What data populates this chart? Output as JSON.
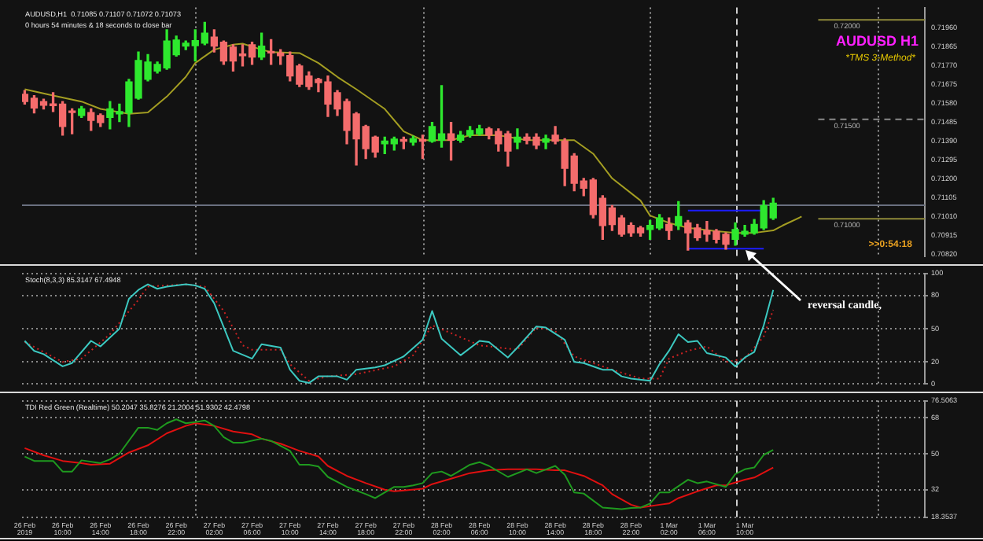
{
  "chart_data": [
    {
      "type": "candlestick",
      "title": "AUDUSD H1",
      "subtitle": "*TMS 3-Method*",
      "annotations": [
        "AUDUSD,H1  0.71085 0.71107 0.71072 0.71073",
        "0 hours 54 minutes & 18 seconds to close bar",
        {
          "text": "reversal candle,",
          "x": "2019-03-01T10:00",
          "y": 0.70867
        },
        ">>0:54:18"
      ],
      "x": [
        "2019-02-26T06:00",
        "2019-02-26T07:00",
        "2019-02-26T08:00",
        "2019-02-26T09:00",
        "2019-02-26T10:00",
        "2019-02-26T11:00",
        "2019-02-26T12:00",
        "2019-02-26T13:00",
        "2019-02-26T14:00",
        "2019-02-26T15:00",
        "2019-02-26T16:00",
        "2019-02-26T17:00",
        "2019-02-26T18:00",
        "2019-02-26T19:00",
        "2019-02-26T20:00",
        "2019-02-26T21:00",
        "2019-02-26T22:00",
        "2019-02-26T23:00",
        "2019-02-27T00:00",
        "2019-02-27T01:00",
        "2019-02-27T02:00",
        "2019-02-27T03:00",
        "2019-02-27T04:00",
        "2019-02-27T05:00",
        "2019-02-27T06:00",
        "2019-02-27T07:00",
        "2019-02-27T08:00",
        "2019-02-27T09:00",
        "2019-02-27T10:00",
        "2019-02-27T11:00",
        "2019-02-27T12:00",
        "2019-02-27T13:00",
        "2019-02-27T14:00",
        "2019-02-27T15:00",
        "2019-02-27T16:00",
        "2019-02-27T17:00",
        "2019-02-27T18:00",
        "2019-02-27T19:00",
        "2019-02-27T20:00",
        "2019-02-27T21:00",
        "2019-02-27T22:00",
        "2019-02-27T23:00",
        "2019-02-28T00:00",
        "2019-02-28T01:00",
        "2019-02-28T02:00",
        "2019-02-28T03:00",
        "2019-02-28T04:00",
        "2019-02-28T05:00",
        "2019-02-28T06:00",
        "2019-02-28T07:00",
        "2019-02-28T08:00",
        "2019-02-28T09:00",
        "2019-02-28T10:00",
        "2019-02-28T11:00",
        "2019-02-28T12:00",
        "2019-02-28T13:00",
        "2019-02-28T14:00",
        "2019-02-28T15:00",
        "2019-02-28T16:00",
        "2019-02-28T17:00",
        "2019-02-28T18:00",
        "2019-02-28T19:00",
        "2019-02-28T20:00",
        "2019-02-28T21:00",
        "2019-02-28T22:00",
        "2019-02-28T23:00",
        "2019-03-01T00:00",
        "2019-03-01T01:00",
        "2019-03-01T02:00",
        "2019-03-01T03:00",
        "2019-03-01T04:00",
        "2019-03-01T05:00",
        "2019-03-01T06:00",
        "2019-03-01T07:00",
        "2019-03-01T08:00",
        "2019-03-01T09:00",
        "2019-03-01T10:00",
        "2019-03-01T11:00",
        "2019-03-01T12:00",
        "2019-03-01T13:00"
      ],
      "ohlc": [
        [
          0.71626,
          0.71644,
          0.71576,
          0.71589
        ],
        [
          0.71606,
          0.71619,
          0.71532,
          0.71557
        ],
        [
          0.71589,
          0.71601,
          0.71552,
          0.71571
        ],
        [
          0.71576,
          0.71634,
          0.71539,
          0.71569
        ],
        [
          0.71576,
          0.71589,
          0.7142,
          0.71464
        ],
        [
          0.71539,
          0.71552,
          0.71427,
          0.71534
        ],
        [
          0.71519,
          0.71564,
          0.71509,
          0.71552
        ],
        [
          0.71534,
          0.71552,
          0.71444,
          0.71494
        ],
        [
          0.71519,
          0.71527,
          0.71464,
          0.71484
        ],
        [
          0.71509,
          0.71589,
          0.71452,
          0.71552
        ],
        [
          0.71527,
          0.71576,
          0.71489,
          0.71539
        ],
        [
          0.71532,
          0.71701,
          0.71464,
          0.71688
        ],
        [
          0.71606,
          0.71838,
          0.71601,
          0.71796
        ],
        [
          0.71701,
          0.71825,
          0.71693,
          0.71788
        ],
        [
          0.71743,
          0.71788,
          0.71733,
          0.71776
        ],
        [
          0.71758,
          0.7195,
          0.71751,
          0.71893
        ],
        [
          0.71825,
          0.71918,
          0.71818,
          0.71898
        ],
        [
          0.71868,
          0.71893,
          0.7185,
          0.71883
        ],
        [
          0.7187,
          0.7195,
          0.71793,
          0.71895
        ],
        [
          0.71883,
          0.71987,
          0.71875,
          0.71933
        ],
        [
          0.71913,
          0.7195,
          0.71838,
          0.71868
        ],
        [
          0.71888,
          0.71893,
          0.71776,
          0.71793
        ],
        [
          0.71863,
          0.71875,
          0.71743,
          0.71793
        ],
        [
          0.71825,
          0.71875,
          0.71768,
          0.7182
        ],
        [
          0.71875,
          0.71888,
          0.71776,
          0.71813
        ],
        [
          0.71813,
          0.71933,
          0.71801,
          0.71868
        ],
        [
          0.71838,
          0.719,
          0.71776,
          0.71833
        ],
        [
          0.71833,
          0.7185,
          0.71776,
          0.7182
        ],
        [
          0.7182,
          0.71838,
          0.71693,
          0.71718
        ],
        [
          0.71768,
          0.71776,
          0.71664,
          0.71676
        ],
        [
          0.71718,
          0.71738,
          0.71651,
          0.71664
        ],
        [
          0.71701,
          0.71706,
          0.71639,
          0.71684
        ],
        [
          0.71688,
          0.71718,
          0.71514,
          0.71576
        ],
        [
          0.71634,
          0.71644,
          0.71519,
          0.71552
        ],
        [
          0.71589,
          0.71601,
          0.71377,
          0.71444
        ],
        [
          0.71527,
          0.71534,
          0.7127,
          0.71402
        ],
        [
          0.71464,
          0.71469,
          0.71303,
          0.71352
        ],
        [
          0.7141,
          0.71415,
          0.7131,
          0.71335
        ],
        [
          0.71377,
          0.7141,
          0.71327,
          0.7139
        ],
        [
          0.71377,
          0.7141,
          0.71345,
          0.714
        ],
        [
          0.71395,
          0.7141,
          0.71352,
          0.7139
        ],
        [
          0.71385,
          0.71415,
          0.7137,
          0.71402
        ],
        [
          0.71395,
          0.7142,
          0.71303,
          0.7139
        ],
        [
          0.7139,
          0.71484,
          0.71385,
          0.71464
        ],
        [
          0.71395,
          0.71669,
          0.7136,
          0.71427
        ],
        [
          0.71427,
          0.71484,
          0.71295,
          0.71395
        ],
        [
          0.71395,
          0.71439,
          0.71385,
          0.7142
        ],
        [
          0.7142,
          0.71464,
          0.7141,
          0.71444
        ],
        [
          0.71427,
          0.71469,
          0.7142,
          0.71452
        ],
        [
          0.71452,
          0.71459,
          0.71402,
          0.7142
        ],
        [
          0.71439,
          0.71452,
          0.7134,
          0.71377
        ],
        [
          0.71427,
          0.71439,
          0.71265,
          0.7134
        ],
        [
          0.71385,
          0.71452,
          0.71352,
          0.7141
        ],
        [
          0.7141,
          0.71427,
          0.71377,
          0.71395
        ],
        [
          0.7141,
          0.71427,
          0.71352,
          0.7137
        ],
        [
          0.71385,
          0.7142,
          0.71352,
          0.71402
        ],
        [
          0.7142,
          0.71464,
          0.71377,
          0.7139
        ],
        [
          0.7139,
          0.71402,
          0.71166,
          0.71253
        ],
        [
          0.71315,
          0.71327,
          0.71141,
          0.71178
        ],
        [
          0.7119,
          0.71203,
          0.71116,
          0.71153
        ],
        [
          0.71195,
          0.71203,
          0.71004,
          0.71021
        ],
        [
          0.71103,
          0.71116,
          0.70897,
          0.70966
        ],
        [
          0.71054,
          0.71066,
          0.70941,
          0.70971
        ],
        [
          0.71004,
          0.71016,
          0.70912,
          0.70922
        ],
        [
          0.70966,
          0.70979,
          0.70912,
          0.70929
        ],
        [
          0.70954,
          0.70961,
          0.70912,
          0.70929
        ],
        [
          0.70946,
          0.70991,
          0.70897,
          0.70966
        ],
        [
          0.70954,
          0.71021,
          0.70946,
          0.71004
        ],
        [
          0.70971,
          0.71004,
          0.70897,
          0.70941
        ],
        [
          0.70966,
          0.71086,
          0.70946,
          0.71011
        ],
        [
          0.70979,
          0.70991,
          0.70842,
          0.70929
        ],
        [
          0.70954,
          0.70971,
          0.70892,
          0.70904
        ],
        [
          0.70941,
          0.70986,
          0.70887,
          0.70922
        ],
        [
          0.70937,
          0.70946,
          0.70879,
          0.70897
        ],
        [
          0.70922,
          0.70929,
          0.70847,
          0.70872
        ],
        [
          0.70897,
          0.70979,
          0.70867,
          0.70946
        ],
        [
          0.70922,
          0.70966,
          0.70912,
          0.70937
        ],
        [
          0.70929,
          0.70996,
          0.70922,
          0.70971
        ],
        [
          0.70954,
          0.71091,
          0.70946,
          0.71066
        ],
        [
          0.71004,
          0.71103,
          0.70996,
          0.71078
        ]
      ],
      "colors": [
        "#f46c6c",
        "#f46c6c",
        "#f46c6c",
        "#f46c6c",
        "#f46c6c",
        "#f46c6c",
        "#2ee82e",
        "#f46c6c",
        "#f46c6c",
        "#2ee82e",
        "#2ee82e",
        "#2ee82e",
        "#2ee82e",
        "#2ee82e",
        "#2ee82e",
        "#2ee82e",
        "#2ee82e",
        "#2ee82e",
        "#2ee82e",
        "#2ee82e",
        "#f46c6c",
        "#f46c6c",
        "#f46c6c",
        "#f46c6c",
        "#f46c6c",
        "#2ee82e",
        "#f46c6c",
        "#f46c6c",
        "#f46c6c",
        "#f46c6c",
        "#f46c6c",
        "#f46c6c",
        "#f46c6c",
        "#f46c6c",
        "#f46c6c",
        "#f46c6c",
        "#f46c6c",
        "#f46c6c",
        "#2ee82e",
        "#2ee82e",
        "#f46c6c",
        "#2ee82e",
        "#f46c6c",
        "#2ee82e",
        "#2ee82e",
        "#f46c6c",
        "#2ee82e",
        "#2ee82e",
        "#2ee82e",
        "#f46c6c",
        "#f46c6c",
        "#f46c6c",
        "#2ee82e",
        "#f46c6c",
        "#f46c6c",
        "#2ee82e",
        "#f46c6c",
        "#f46c6c",
        "#f46c6c",
        "#f46c6c",
        "#f46c6c",
        "#f46c6c",
        "#f46c6c",
        "#f46c6c",
        "#f46c6c",
        "#f46c6c",
        "#2ee82e",
        "#2ee82e",
        "#f46c6c",
        "#2ee82e",
        "#f46c6c",
        "#f46c6c",
        "#f46c6c",
        "#f46c6c",
        "#f46c6c",
        "#2ee82e",
        "#2ee82e",
        "#2ee82e",
        "#2ee82e",
        "#2ee82e"
      ],
      "series": [
        {
          "type": "line",
          "color": "#a39d22",
          "x": [
            "2019-02-26T06:00",
            "2019-02-26T09:00",
            "2019-02-26T12:00",
            "2019-02-26T14:00",
            "2019-02-26T17:00",
            "2019-02-26T19:00",
            "2019-02-26T21:00",
            "2019-02-26T23:00",
            "2019-02-27T00:00",
            "2019-02-27T02:00",
            "2019-02-27T04:00",
            "2019-02-27T05:00",
            "2019-02-27T07:00",
            "2019-02-27T08:00",
            "2019-02-27T11:00",
            "2019-02-27T13:00",
            "2019-02-27T15:00",
            "2019-02-27T17:00",
            "2019-02-27T20:00",
            "2019-02-27T22:00",
            "2019-02-28T00:00",
            "2019-02-28T03:00",
            "2019-02-28T05:00",
            "2019-02-28T08:00",
            "2019-02-28T11:00",
            "2019-02-28T16:00",
            "2019-02-28T18:00",
            "2019-02-28T20:00",
            "2019-02-28T23:00",
            "2019-03-01T00:00",
            "2019-03-01T02:00",
            "2019-03-01T04:00",
            "2019-03-01T07:00",
            "2019-03-01T09:00",
            "2019-03-01T11:00",
            "2019-03-01T13:00",
            "2019-03-01T14:00",
            "2019-03-01T16:00"
          ],
          "values": [
            0.71651,
            0.71619,
            0.71589,
            0.71552,
            0.71527,
            0.71534,
            0.71614,
            0.71713,
            0.71783,
            0.7185,
            0.71875,
            0.7188,
            0.7185,
            0.71838,
            0.71833,
            0.71783,
            0.71713,
            0.71651,
            0.71552,
            0.71439,
            0.71395,
            0.71395,
            0.7142,
            0.7142,
            0.71395,
            0.71395,
            0.71327,
            0.71203,
            0.71091,
            0.71016,
            0.70979,
            0.70954,
            0.70937,
            0.70929,
            0.70929,
            0.70941,
            0.70966,
            0.71011
          ]
        },
        {
          "type": "line",
          "color": "#1c1cff",
          "x": [
            "2019-03-01T04:00",
            "2019-03-01T12:00"
          ],
          "values": [
            0.71041,
            0.71041
          ]
        },
        {
          "type": "line",
          "color": "#1c1cff",
          "x": [
            "2019-03-01T04:00",
            "2019-03-01T12:00"
          ],
          "values": [
            0.70849,
            0.70849
          ]
        },
        {
          "type": "line",
          "name": "0.72000",
          "color": "#8f8a3a",
          "x": [
            "2019-03-01T17:45",
            "2019-03-02T05:00"
          ],
          "values": [
            0.72,
            0.72
          ]
        },
        {
          "type": "line",
          "name": "0.71500",
          "color": "#8a8a8a",
          "line_style": "dashed",
          "x": [
            "2019-03-01T17:45",
            "2019-03-02T05:00"
          ],
          "values": [
            0.715,
            0.715
          ]
        },
        {
          "type": "line",
          "name": "0.71000",
          "color": "#8f8a3a",
          "x": [
            "2019-03-01T17:45",
            "2019-03-02T05:00"
          ],
          "values": [
            0.71,
            0.71
          ]
        }
      ],
      "xlim": [
        "2019-02-26T05:43",
        "2019-03-02T05:00"
      ],
      "ylim": [
        0.70809,
        0.72062
      ],
      "yticks": [
        {
          "value": 0.7082,
          "label": "0.70820"
        },
        0.70915,
        {
          "value": 0.7101,
          "label": "0.71010"
        },
        0.71105,
        {
          "value": 0.712,
          "label": "0.71200"
        },
        0.71295,
        {
          "value": 0.7139,
          "label": "0.71390"
        },
        0.71485,
        {
          "value": 0.7158,
          "label": "0.71580"
        },
        0.71675,
        {
          "value": 0.7177,
          "label": "0.71770"
        },
        0.71865,
        {
          "value": 0.7196,
          "label": "0.71960"
        }
      ],
      "ref_lines": [
        {
          "axis": "x",
          "value": "2019-02-27T00:00",
          "color": "#9a9a9a",
          "line_style": "dotted"
        },
        {
          "axis": "x",
          "value": "2019-02-28T00:00",
          "color": "#9a9a9a",
          "line_style": "dotted"
        },
        {
          "axis": "x",
          "value": "2019-03-01T00:00",
          "color": "#9a9a9a",
          "line_style": "dotted"
        },
        {
          "axis": "x",
          "value": "2019-03-02T00:00",
          "color": "#9a9a9a",
          "line_style": "dotted"
        },
        {
          "axis": "x",
          "value": "2019-03-01T09:00",
          "color": "#d0d0d0",
          "line_style": "dashed"
        },
        {
          "axis": "y",
          "value": 0.71074,
          "color": "#6a7080",
          "line_style": "solid"
        }
      ],
      "tick_labels": "y",
      "grid": false,
      "marker": "none",
      "legend": false
    },
    {
      "type": "line",
      "title": "Stoch(8,3,3) 85.3147 67.4948",
      "series": [
        {
          "color": "#3cc8c0",
          "x": [
            "2019-02-26T06:00",
            "2019-02-26T07:00",
            "2019-02-26T08:00",
            "2019-02-26T10:00",
            "2019-02-26T11:00",
            "2019-02-26T13:00",
            "2019-02-26T14:00",
            "2019-02-26T16:00",
            "2019-02-26T17:00",
            "2019-02-26T18:00",
            "2019-02-26T19:00",
            "2019-02-26T20:00",
            "2019-02-26T21:00",
            "2019-02-26T23:00",
            "2019-02-27T00:00",
            "2019-02-27T01:00",
            "2019-02-27T02:00",
            "2019-02-27T04:00",
            "2019-02-27T06:00",
            "2019-02-27T07:00",
            "2019-02-27T09:00",
            "2019-02-27T10:00",
            "2019-02-27T11:00",
            "2019-02-27T12:00",
            "2019-02-27T13:00",
            "2019-02-27T15:00",
            "2019-02-27T16:00",
            "2019-02-27T17:00",
            "2019-02-27T19:00",
            "2019-02-27T20:00",
            "2019-02-27T22:00",
            "2019-02-28T00:00",
            "2019-02-28T01:00",
            "2019-02-28T02:00",
            "2019-02-28T04:00",
            "2019-02-28T06:00",
            "2019-02-28T07:00",
            "2019-02-28T09:00",
            "2019-02-28T10:00",
            "2019-02-28T12:00",
            "2019-02-28T13:00",
            "2019-02-28T15:00",
            "2019-02-28T16:00",
            "2019-02-28T17:00",
            "2019-02-28T19:00",
            "2019-02-28T20:00",
            "2019-02-28T21:00",
            "2019-02-28T22:00",
            "2019-03-01T00:00",
            "2019-03-01T01:00",
            "2019-03-01T02:00",
            "2019-03-01T03:00",
            "2019-03-01T04:00",
            "2019-03-01T05:00",
            "2019-03-01T06:00",
            "2019-03-01T08:00",
            "2019-03-01T09:00",
            "2019-03-01T10:00",
            "2019-03-01T11:00",
            "2019-03-01T12:00",
            "2019-03-01T13:00"
          ],
          "values": [
            39,
            30,
            27,
            16,
            19,
            39,
            34,
            50,
            77,
            85,
            90,
            86,
            88,
            90,
            89,
            86,
            73,
            30,
            23,
            36,
            33,
            13,
            3,
            1,
            7,
            7,
            4,
            13,
            15,
            17,
            25,
            40,
            66,
            41,
            26,
            39,
            38,
            24,
            33,
            52,
            51,
            40,
            20,
            19,
            13,
            13,
            7,
            5,
            3,
            18,
            30,
            45,
            38,
            39,
            28,
            24,
            16,
            24,
            29,
            53,
            85
          ]
        },
        {
          "color": "#cc2222",
          "line_style": "dotted",
          "x": [
            "2019-02-26T06:00",
            "2019-02-26T10:00",
            "2019-02-26T12:00",
            "2019-02-26T15:00",
            "2019-02-26T18:00",
            "2019-02-26T19:00",
            "2019-02-26T23:00",
            "2019-02-27T01:00",
            "2019-02-27T03:00",
            "2019-02-27T05:00",
            "2019-02-27T06:00",
            "2019-02-27T09:00",
            "2019-02-27T10:00",
            "2019-02-27T12:00",
            "2019-02-27T14:00",
            "2019-02-27T17:00",
            "2019-02-27T21:00",
            "2019-02-27T23:00",
            "2019-02-28T01:00",
            "2019-02-28T03:00",
            "2019-02-28T06:00",
            "2019-02-28T10:00",
            "2019-02-28T12:00",
            "2019-02-28T14:00",
            "2019-02-28T16:00",
            "2019-02-28T20:00",
            "2019-02-28T23:00",
            "2019-03-01T01:00",
            "2019-03-01T02:00",
            "2019-03-01T04:00",
            "2019-03-01T06:00",
            "2019-03-01T08:00",
            "2019-03-01T10:00",
            "2019-03-01T12:00",
            "2019-03-01T13:00"
          ],
          "values": [
            38,
            20,
            23,
            45,
            76,
            88,
            90,
            88,
            66,
            35,
            31,
            31,
            18,
            3,
            7,
            9,
            16,
            26,
            53,
            46,
            35,
            31,
            51,
            48,
            25,
            13,
            5,
            5,
            23,
            30,
            34,
            20,
            23,
            43,
            67
          ]
        }
      ],
      "xlim": [
        "2019-02-26T05:43",
        "2019-03-02T05:00"
      ],
      "ylim": [
        0,
        100
      ],
      "yticks": [
        0,
        20,
        50,
        80,
        100
      ],
      "ref_lines": [
        {
          "axis": "x",
          "value": "2019-02-27T00:00",
          "color": "#9a9a9a",
          "line_style": "dotted"
        },
        {
          "axis": "x",
          "value": "2019-02-28T00:00",
          "color": "#9a9a9a",
          "line_style": "dotted"
        },
        {
          "axis": "x",
          "value": "2019-03-01T00:00",
          "color": "#9a9a9a",
          "line_style": "dotted"
        },
        {
          "axis": "x",
          "value": "2019-03-02T00:00",
          "color": "#9a9a9a",
          "line_style": "dotted"
        },
        {
          "axis": "x",
          "value": "2019-03-01T09:00",
          "color": "#d0d0d0",
          "line_style": "dashed"
        }
      ],
      "tick_labels": "y",
      "grid": "y",
      "marker": "none",
      "legend": false
    },
    {
      "type": "line",
      "title": "TDI Red Green (Realtime) 50.2047 35.8276 21.2004 51.9302 42.4798",
      "series": [
        {
          "color": "#1f9a1f",
          "x": [
            "2019-02-26T06:00",
            "2019-02-26T07:00",
            "2019-02-26T09:00",
            "2019-02-26T10:00",
            "2019-02-26T11:00",
            "2019-02-26T12:00",
            "2019-02-26T14:00",
            "2019-02-26T15:00",
            "2019-02-26T16:00",
            "2019-02-26T18:00",
            "2019-02-26T19:00",
            "2019-02-26T20:00",
            "2019-02-26T21:00",
            "2019-02-26T22:00",
            "2019-02-26T23:00",
            "2019-02-27T00:00",
            "2019-02-27T01:00",
            "2019-02-27T02:00",
            "2019-02-27T03:00",
            "2019-02-27T04:00",
            "2019-02-27T05:00",
            "2019-02-27T07:00",
            "2019-02-27T08:00",
            "2019-02-27T10:00",
            "2019-02-27T11:00",
            "2019-02-27T12:00",
            "2019-02-27T13:00",
            "2019-02-27T14:00",
            "2019-02-27T16:00",
            "2019-02-27T18:00",
            "2019-02-27T19:00",
            "2019-02-27T21:00",
            "2019-02-27T22:00",
            "2019-02-27T23:00",
            "2019-02-28T00:00",
            "2019-02-28T01:00",
            "2019-02-28T02:00",
            "2019-02-28T03:00",
            "2019-02-28T04:00",
            "2019-02-28T05:00",
            "2019-02-28T06:00",
            "2019-02-28T07:00",
            "2019-02-28T09:00",
            "2019-02-28T11:00",
            "2019-02-28T12:00",
            "2019-02-28T14:00",
            "2019-02-28T15:00",
            "2019-02-28T16:00",
            "2019-02-28T17:00",
            "2019-02-28T19:00",
            "2019-02-28T21:00",
            "2019-02-28T22:00",
            "2019-02-28T23:00",
            "2019-03-01T00:00",
            "2019-03-01T01:00",
            "2019-03-01T02:00",
            "2019-03-01T04:00",
            "2019-03-01T05:00",
            "2019-03-01T06:00",
            "2019-03-01T08:00",
            "2019-03-01T09:00",
            "2019-03-01T10:00",
            "2019-03-01T11:00",
            "2019-03-01T12:00",
            "2019-03-01T13:00"
          ],
          "values": [
            48.6,
            46.4,
            46.4,
            41.1,
            41.1,
            46.7,
            45.3,
            47.2,
            50,
            63,
            63,
            61.9,
            65.2,
            67.2,
            65.2,
            65.8,
            66.6,
            63.9,
            58.3,
            55.5,
            55.5,
            57.5,
            56.4,
            51.4,
            44.5,
            44.5,
            43.6,
            38.4,
            33.4,
            29.8,
            27.8,
            33.4,
            33.4,
            34.2,
            35.3,
            40.3,
            41.1,
            38.9,
            41.7,
            44.5,
            45.8,
            43.9,
            38.4,
            42.2,
            40.3,
            43.9,
            39.5,
            30.6,
            30.1,
            23.1,
            22.3,
            22.9,
            23.1,
            25.1,
            30.6,
            30.6,
            37,
            35.3,
            36.1,
            33.4,
            39.8,
            42.2,
            43.1,
            49.4,
            51.9
          ]
        },
        {
          "color": "#e01010",
          "x": [
            "2019-02-26T06:00",
            "2019-02-26T08:00",
            "2019-02-26T10:00",
            "2019-02-26T12:00",
            "2019-02-26T13:00",
            "2019-02-26T15:00",
            "2019-02-26T17:00",
            "2019-02-26T19:00",
            "2019-02-26T21:00",
            "2019-02-26T23:00",
            "2019-02-27T00:00",
            "2019-02-27T02:00",
            "2019-02-27T04:00",
            "2019-02-27T06:00",
            "2019-02-27T07:00",
            "2019-02-27T09:00",
            "2019-02-27T11:00",
            "2019-02-27T13:00",
            "2019-02-27T14:00",
            "2019-02-27T16:00",
            "2019-02-27T18:00",
            "2019-02-27T20:00",
            "2019-02-27T21:00",
            "2019-02-28T00:00",
            "2019-02-28T01:00",
            "2019-02-28T03:00",
            "2019-02-28T05:00",
            "2019-02-28T07:00",
            "2019-02-28T09:00",
            "2019-02-28T12:00",
            "2019-02-28T14:00",
            "2019-02-28T15:00",
            "2019-02-28T17:00",
            "2019-02-28T19:00",
            "2019-02-28T20:00",
            "2019-02-28T22:00",
            "2019-02-28T23:00",
            "2019-03-01T01:00",
            "2019-03-01T02:00",
            "2019-03-01T03:00",
            "2019-03-01T05:00",
            "2019-03-01T07:00",
            "2019-03-01T08:00",
            "2019-03-01T10:00",
            "2019-03-01T11:00",
            "2019-03-01T13:00"
          ],
          "values": [
            52.8,
            49.2,
            46.4,
            45.3,
            44.5,
            45,
            50.6,
            54.2,
            60.2,
            63.9,
            65.2,
            63.9,
            61.1,
            59.7,
            57.5,
            55,
            51.4,
            48.6,
            43.9,
            38.9,
            35.3,
            32,
            31.2,
            32.5,
            34.8,
            37.5,
            40.3,
            41.7,
            42.2,
            42.2,
            41.7,
            41.7,
            38.9,
            34.2,
            29.8,
            24.5,
            23.1,
            24.5,
            25.1,
            27.8,
            31.2,
            34.2,
            34.2,
            37,
            38.1,
            43.1
          ]
        }
      ],
      "xlim": [
        "2019-02-26T05:43",
        "2019-03-02T05:00"
      ],
      "xticks": [
        {
          "value": "2019-02-26T06:00",
          "label": "26 Feb 2019"
        },
        {
          "value": "2019-02-26T10:00",
          "label": "26 Feb 10:00"
        },
        {
          "value": "2019-02-26T14:00",
          "label": "26 Feb 14:00"
        },
        {
          "value": "2019-02-26T18:00",
          "label": "26 Feb 18:00"
        },
        {
          "value": "2019-02-26T22:00",
          "label": "26 Feb 22:00"
        },
        {
          "value": "2019-02-27T02:00",
          "label": "27 Feb 02:00"
        },
        {
          "value": "2019-02-27T06:00",
          "label": "27 Feb 06:00"
        },
        {
          "value": "2019-02-27T10:00",
          "label": "27 Feb 10:00"
        },
        {
          "value": "2019-02-27T14:00",
          "label": "27 Feb 14:00"
        },
        {
          "value": "2019-02-27T18:00",
          "label": "27 Feb 18:00"
        },
        {
          "value": "2019-02-27T22:00",
          "label": "27 Feb 22:00"
        },
        {
          "value": "2019-02-28T02:00",
          "label": "28 Feb 02:00"
        },
        {
          "value": "2019-02-28T06:00",
          "label": "28 Feb 06:00"
        },
        {
          "value": "2019-02-28T10:00",
          "label": "28 Feb 10:00"
        },
        {
          "value": "2019-02-28T14:00",
          "label": "28 Feb 14:00"
        },
        {
          "value": "2019-02-28T18:00",
          "label": "28 Feb 18:00"
        },
        {
          "value": "2019-02-28T22:00",
          "label": "28 Feb 22:00"
        },
        {
          "value": "2019-03-01T02:00",
          "label": "1 Mar 02:00"
        },
        {
          "value": "2019-03-01T06:00",
          "label": "1 Mar 06:00"
        },
        {
          "value": "2019-03-01T10:00",
          "label": "1 Mar 10:00"
        }
      ],
      "ylim": [
        18.3537,
        76.5063
      ],
      "yticks": [
        18.3537,
        32,
        50,
        68,
        76.5063
      ],
      "ref_lines": [
        {
          "axis": "x",
          "value": "2019-02-27T00:00",
          "color": "#9a9a9a",
          "line_style": "dotted"
        },
        {
          "axis": "x",
          "value": "2019-02-28T00:00",
          "color": "#9a9a9a",
          "line_style": "dotted"
        },
        {
          "axis": "x",
          "value": "2019-03-01T00:00",
          "color": "#9a9a9a",
          "line_style": "dotted"
        },
        {
          "axis": "x",
          "value": "2019-03-02T00:00",
          "color": "#9a9a9a",
          "line_style": "dotted"
        },
        {
          "axis": "x",
          "value": "2019-03-01T09:00",
          "color": "#d0d0d0",
          "line_style": "dashed"
        }
      ],
      "grid": "y",
      "marker": "none",
      "legend": false
    }
  ]
}
